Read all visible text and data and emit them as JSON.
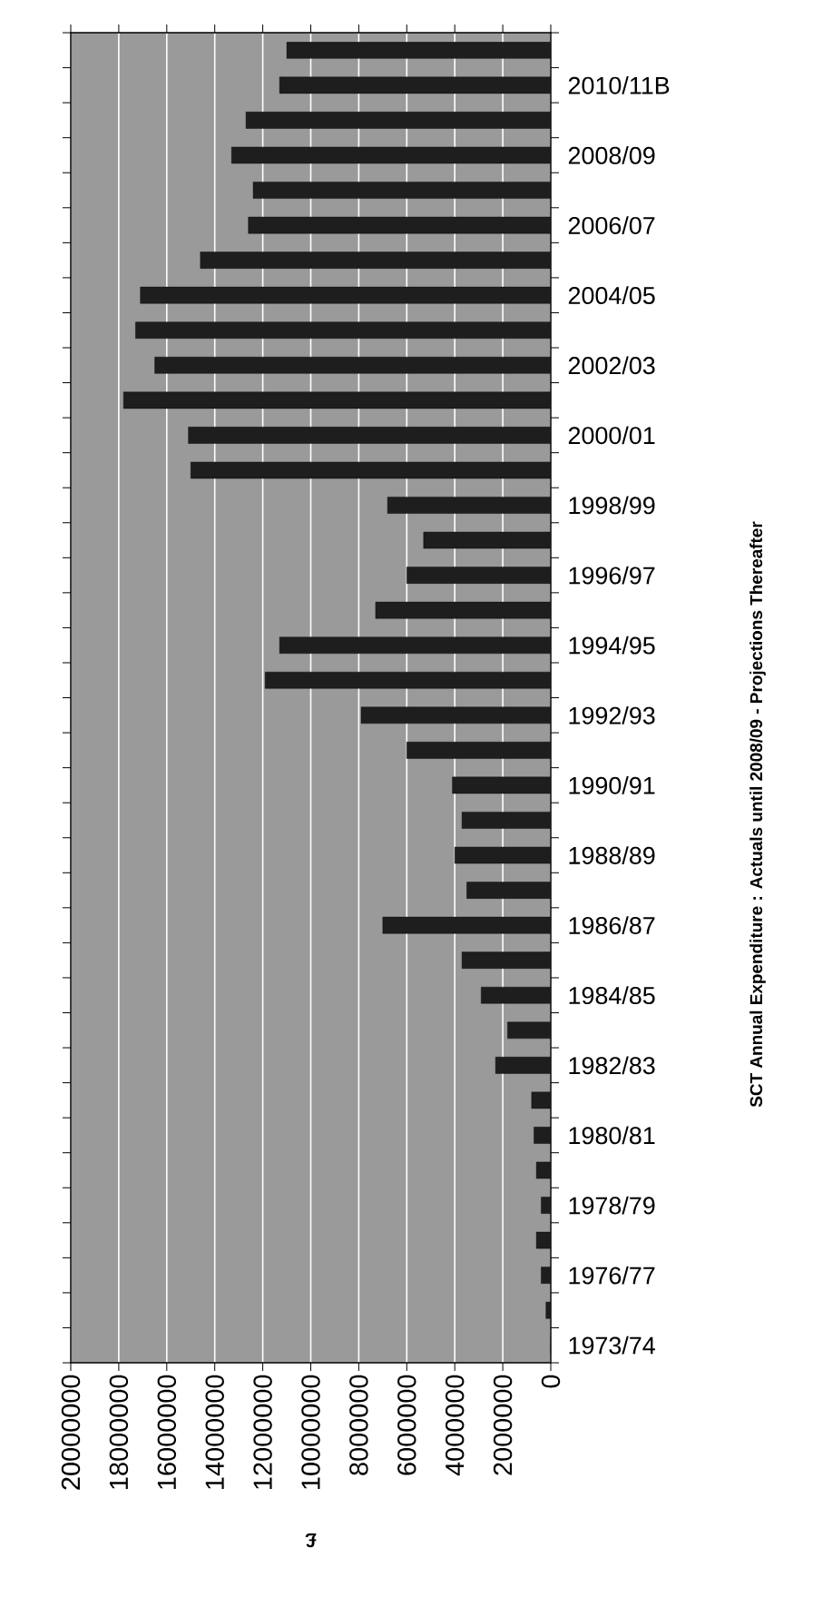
{
  "chart_data": {
    "type": "bar",
    "orientation": "horizontal",
    "title": "SCT  Annual Expenditure : Actuals until 2008/09 - Projections Thereafter",
    "xlabel": "£",
    "categories": [
      null,
      "2010/11B",
      null,
      "2008/09",
      null,
      "2006/07",
      null,
      "2004/05",
      null,
      "2002/03",
      null,
      "2000/01",
      null,
      "1998/99",
      null,
      "1996/97",
      null,
      "1994/95",
      null,
      "1992/93",
      null,
      "1990/91",
      null,
      "1988/89",
      null,
      "1986/87",
      null,
      "1984/85",
      null,
      "1982/83",
      null,
      "1980/81",
      null,
      "1978/79",
      null,
      "1976/77",
      null,
      "1973/74"
    ],
    "values": [
      11000000,
      11300000,
      12700000,
      13300000,
      12400000,
      12600000,
      14600000,
      17100000,
      17300000,
      16500000,
      17800000,
      15100000,
      15000000,
      6800000,
      5300000,
      6000000,
      7300000,
      11300000,
      11900000,
      7900000,
      6000000,
      4100000,
      3700000,
      4000000,
      3500000,
      7000000,
      3700000,
      2900000,
      1800000,
      2300000,
      800000,
      700000,
      600000,
      400000,
      600000,
      400000,
      200000,
      0
    ],
    "color": "#1e1e1e",
    "xlim": [
      20000000,
      0
    ],
    "xticks": [
      0,
      2000000,
      4000000,
      6000000,
      8000000,
      10000000,
      12000000,
      14000000,
      16000000,
      18000000,
      20000000
    ],
    "grid": "x"
  }
}
